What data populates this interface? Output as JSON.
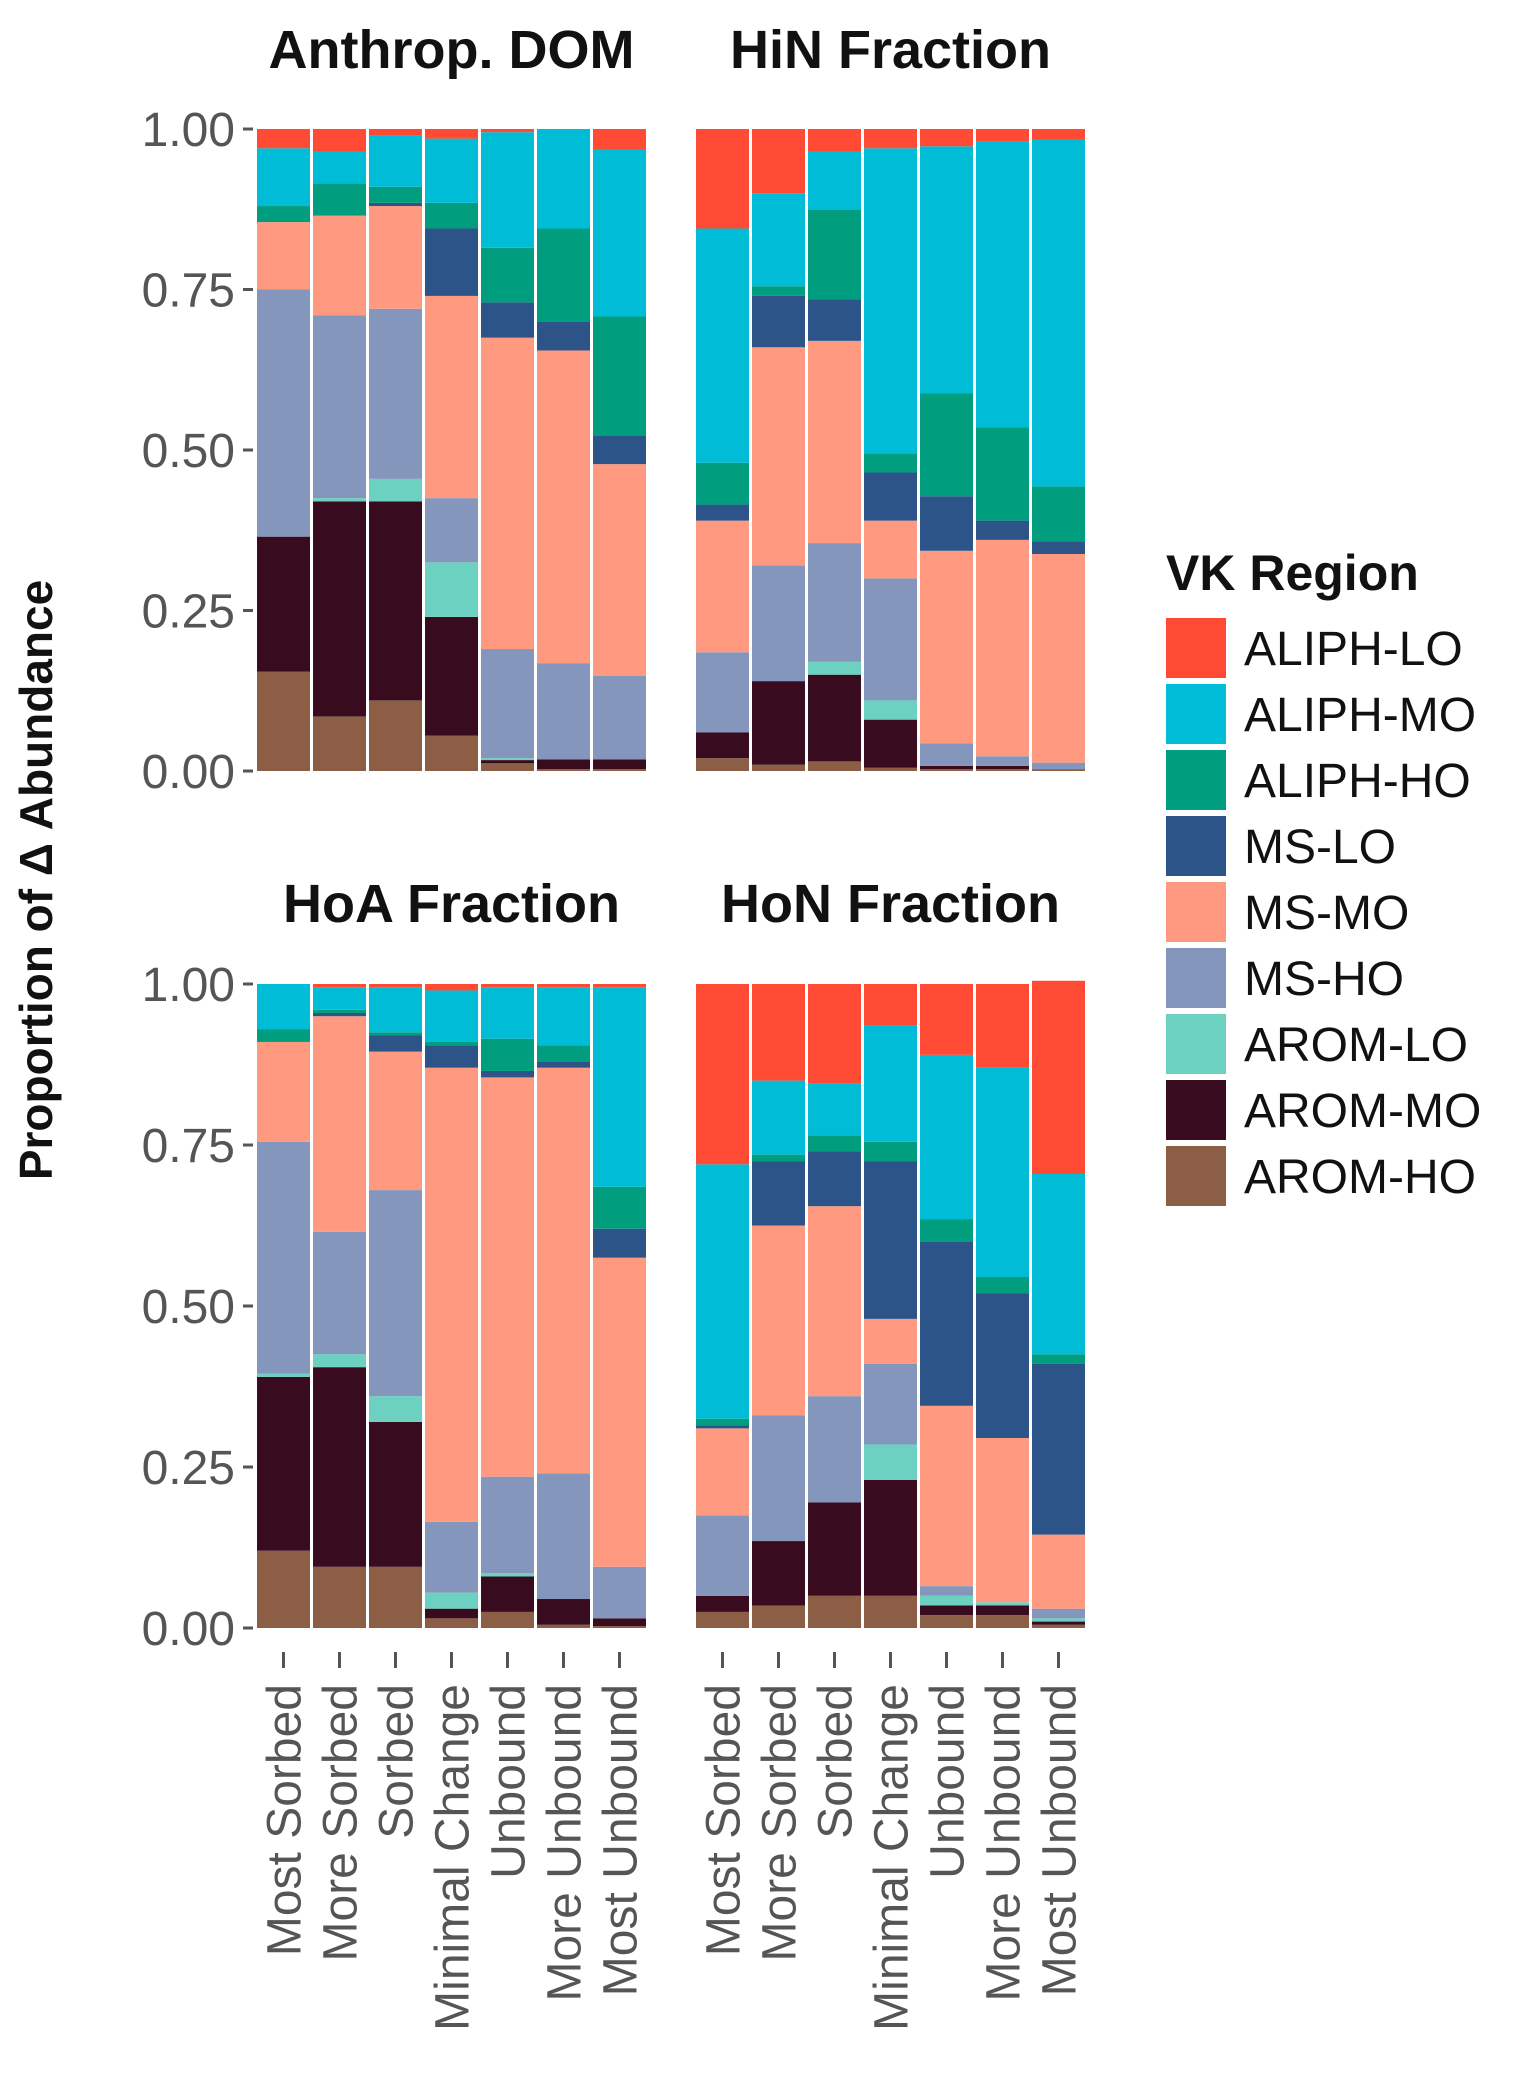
{
  "chart_data": {
    "type": "bar",
    "stacked": true,
    "ylabel": "Proportion of Δ Abundance",
    "xlabel": "",
    "ylim": [
      0,
      1
    ],
    "yticks": [
      "0.00",
      "0.25",
      "0.50",
      "0.75",
      "1.00"
    ],
    "categories": [
      "Most Sorbed",
      "More Sorbed",
      "Sorbed",
      "Minimal Change",
      "Unbound",
      "More Unbound",
      "Most Unbound"
    ],
    "legend": {
      "title": "VK Region",
      "entries": [
        {
          "name": "ALIPH-LO",
          "color": "#FF4B33"
        },
        {
          "name": "ALIPH-MO",
          "color": "#00BCD6"
        },
        {
          "name": "ALIPH-HO",
          "color": "#009E7E"
        },
        {
          "name": "MS-LO",
          "color": "#2C5489"
        },
        {
          "name": "MS-MO",
          "color": "#FF9A80"
        },
        {
          "name": "MS-HO",
          "color": "#8496BB"
        },
        {
          "name": "AROM-LO",
          "color": "#6DD1C1"
        },
        {
          "name": "AROM-MO",
          "color": "#380C1E"
        },
        {
          "name": "AROM-HO",
          "color": "#8C5E45"
        }
      ]
    },
    "stack_order_bottom_to_top": [
      "AROM-HO",
      "AROM-MO",
      "AROM-LO",
      "MS-HO",
      "MS-MO",
      "MS-LO",
      "ALIPH-HO",
      "ALIPH-MO",
      "ALIPH-LO"
    ],
    "panels": [
      {
        "title": "Anthrop. DOM",
        "series": [
          {
            "name": "AROM-HO",
            "values": [
              0.155,
              0.085,
              0.11,
              0.055,
              0.012,
              0.003,
              0.003
            ]
          },
          {
            "name": "AROM-MO",
            "values": [
              0.21,
              0.335,
              0.31,
              0.185,
              0.005,
              0.015,
              0.015
            ]
          },
          {
            "name": "AROM-LO",
            "values": [
              0.0,
              0.005,
              0.035,
              0.085,
              0.003,
              0.0,
              0.0
            ]
          },
          {
            "name": "MS-HO",
            "values": [
              0.385,
              0.285,
              0.265,
              0.1,
              0.17,
              0.15,
              0.13
            ]
          },
          {
            "name": "MS-MO",
            "values": [
              0.105,
              0.155,
              0.16,
              0.315,
              0.485,
              0.487,
              0.33
            ]
          },
          {
            "name": "MS-LO",
            "values": [
              0.0,
              0.0,
              0.005,
              0.105,
              0.055,
              0.045,
              0.045
            ]
          },
          {
            "name": "ALIPH-HO",
            "values": [
              0.025,
              0.05,
              0.025,
              0.04,
              0.085,
              0.145,
              0.185
            ]
          },
          {
            "name": "ALIPH-MO",
            "values": [
              0.09,
              0.05,
              0.08,
              0.1,
              0.18,
              0.155,
              0.26
            ]
          },
          {
            "name": "ALIPH-LO",
            "values": [
              0.03,
              0.035,
              0.01,
              0.015,
              0.005,
              0.0,
              0.032
            ]
          }
        ]
      },
      {
        "title": "HiN Fraction",
        "series": [
          {
            "name": "AROM-HO",
            "values": [
              0.02,
              0.01,
              0.015,
              0.005,
              0.003,
              0.003,
              0.003
            ]
          },
          {
            "name": "AROM-MO",
            "values": [
              0.04,
              0.13,
              0.135,
              0.075,
              0.005,
              0.005,
              0.0
            ]
          },
          {
            "name": "AROM-LO",
            "values": [
              0.0,
              0.0,
              0.02,
              0.03,
              0.0,
              0.0,
              0.0
            ]
          },
          {
            "name": "MS-HO",
            "values": [
              0.125,
              0.18,
              0.185,
              0.19,
              0.035,
              0.015,
              0.01
            ]
          },
          {
            "name": "MS-MO",
            "values": [
              0.205,
              0.34,
              0.315,
              0.09,
              0.3,
              0.337,
              0.325
            ]
          },
          {
            "name": "MS-LO",
            "values": [
              0.025,
              0.08,
              0.065,
              0.075,
              0.085,
              0.03,
              0.02
            ]
          },
          {
            "name": "ALIPH-HO",
            "values": [
              0.065,
              0.015,
              0.14,
              0.03,
              0.16,
              0.145,
              0.085
            ]
          },
          {
            "name": "ALIPH-MO",
            "values": [
              0.365,
              0.145,
              0.09,
              0.475,
              0.385,
              0.445,
              0.54
            ]
          },
          {
            "name": "ALIPH-LO",
            "values": [
              0.155,
              0.1,
              0.035,
              0.03,
              0.027,
              0.02,
              0.017
            ]
          }
        ]
      },
      {
        "title": "HoA Fraction",
        "series": [
          {
            "name": "AROM-HO",
            "values": [
              0.12,
              0.095,
              0.095,
              0.015,
              0.025,
              0.005,
              0.003
            ]
          },
          {
            "name": "AROM-MO",
            "values": [
              0.27,
              0.31,
              0.225,
              0.015,
              0.055,
              0.04,
              0.012
            ]
          },
          {
            "name": "AROM-LO",
            "values": [
              0.005,
              0.02,
              0.04,
              0.025,
              0.005,
              0.0,
              0.0
            ]
          },
          {
            "name": "MS-HO",
            "values": [
              0.36,
              0.19,
              0.32,
              0.11,
              0.15,
              0.195,
              0.08
            ]
          },
          {
            "name": "MS-MO",
            "values": [
              0.155,
              0.335,
              0.215,
              0.705,
              0.62,
              0.63,
              0.48
            ]
          },
          {
            "name": "MS-LO",
            "values": [
              0.0,
              0.005,
              0.025,
              0.035,
              0.01,
              0.01,
              0.045
            ]
          },
          {
            "name": "ALIPH-HO",
            "values": [
              0.02,
              0.005,
              0.005,
              0.005,
              0.05,
              0.025,
              0.065
            ]
          },
          {
            "name": "ALIPH-MO",
            "values": [
              0.07,
              0.035,
              0.07,
              0.08,
              0.08,
              0.09,
              0.31
            ]
          },
          {
            "name": "ALIPH-LO",
            "values": [
              0.0,
              0.005,
              0.005,
              0.01,
              0.005,
              0.005,
              0.005
            ]
          }
        ]
      },
      {
        "title": "HoN Fraction",
        "series": [
          {
            "name": "AROM-HO",
            "values": [
              0.025,
              0.035,
              0.05,
              0.05,
              0.02,
              0.02,
              0.005
            ]
          },
          {
            "name": "AROM-MO",
            "values": [
              0.025,
              0.1,
              0.145,
              0.18,
              0.015,
              0.015,
              0.005
            ]
          },
          {
            "name": "AROM-LO",
            "values": [
              0.0,
              0.0,
              0.0,
              0.055,
              0.015,
              0.005,
              0.005
            ]
          },
          {
            "name": "MS-HO",
            "values": [
              0.125,
              0.195,
              0.165,
              0.125,
              0.015,
              0.0,
              0.015
            ]
          },
          {
            "name": "MS-MO",
            "values": [
              0.135,
              0.295,
              0.295,
              0.07,
              0.28,
              0.255,
              0.115
            ]
          },
          {
            "name": "MS-LO",
            "values": [
              0.005,
              0.1,
              0.085,
              0.245,
              0.255,
              0.225,
              0.265
            ]
          },
          {
            "name": "ALIPH-HO",
            "values": [
              0.01,
              0.01,
              0.025,
              0.03,
              0.035,
              0.025,
              0.015
            ]
          },
          {
            "name": "ALIPH-MO",
            "values": [
              0.395,
              0.115,
              0.08,
              0.18,
              0.255,
              0.325,
              0.28
            ]
          },
          {
            "name": "ALIPH-LO",
            "values": [
              0.28,
              0.15,
              0.155,
              0.065,
              0.11,
              0.13,
              0.3
            ]
          }
        ]
      }
    ]
  }
}
